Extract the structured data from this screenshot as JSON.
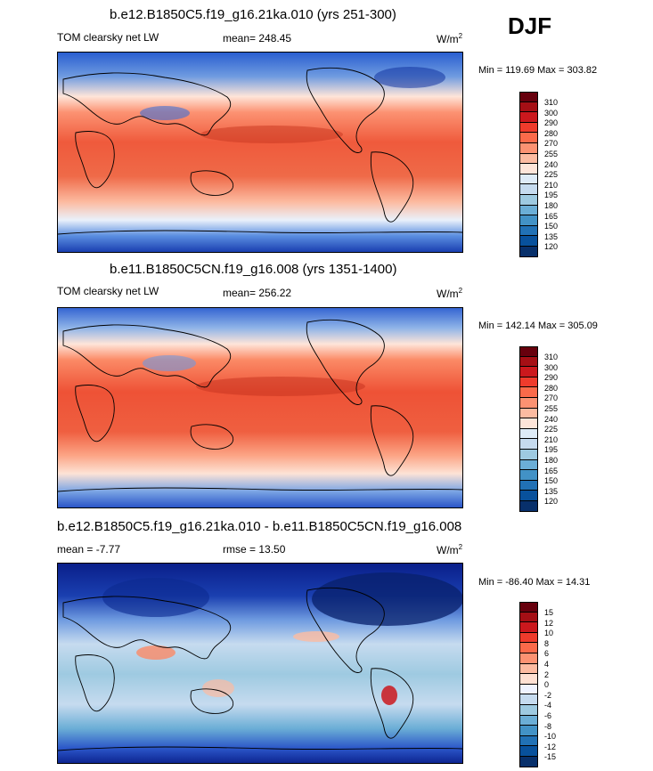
{
  "season": "DJF",
  "panels": [
    {
      "title": "b.e12.B1850C5.f19_g16.21ka.010 (yrs 251-300)",
      "variable": "TOM clearsky net LW",
      "mean_label": "mean= 248.45",
      "units_base": "W/m",
      "units_exp": "2",
      "minmax": "Min = 119.69 Max = 303.82",
      "kind": "absolute",
      "colorbar_labels": [
        "310",
        "300",
        "290",
        "280",
        "270",
        "255",
        "240",
        "225",
        "210",
        "195",
        "180",
        "165",
        "150",
        "135",
        "120"
      ]
    },
    {
      "title": "b.e11.B1850C5CN.f19_g16.008 (yrs 1351-1400)",
      "variable": "TOM clearsky net LW",
      "mean_label": "mean= 256.22",
      "units_base": "W/m",
      "units_exp": "2",
      "minmax": "Min = 142.14 Max = 305.09",
      "kind": "absolute",
      "colorbar_labels": [
        "310",
        "300",
        "290",
        "280",
        "270",
        "255",
        "240",
        "225",
        "210",
        "195",
        "180",
        "165",
        "150",
        "135",
        "120"
      ]
    },
    {
      "title": "b.e12.B1850C5.f19_g16.21ka.010 - b.e11.B1850C5CN.f19_g16.008",
      "mean_label": "mean =  -7.77",
      "rmse_label": "rmse =  13.50",
      "units_base": "W/m",
      "units_exp": "2",
      "minmax": "Min = -86.40 Max =  14.31",
      "kind": "difference",
      "colorbar_labels": [
        "15",
        "12",
        "10",
        "8",
        "6",
        "4",
        "2",
        "0",
        "-2",
        "-4",
        "-6",
        "-8",
        "-10",
        "-12",
        "-15"
      ]
    }
  ],
  "colors": {
    "abs_palette": [
      "#67000d",
      "#a50f15",
      "#cb181d",
      "#ef3b2c",
      "#fb6a4a",
      "#fc9272",
      "#fcbba1",
      "#fee5d9",
      "#deebf7",
      "#c6dbef",
      "#9ecae1",
      "#6baed6",
      "#4292c6",
      "#2171b5",
      "#08519c",
      "#08306b"
    ],
    "diff_palette": [
      "#67000d",
      "#a50f15",
      "#cb181d",
      "#ef3b2c",
      "#fb6a4a",
      "#fc9272",
      "#fcbba1",
      "#fee0d2",
      "#eff3ff",
      "#c6dbef",
      "#9ecae1",
      "#6baed6",
      "#4292c6",
      "#2171b5",
      "#08519c",
      "#08306b"
    ]
  },
  "chart_data": [
    {
      "type": "heatmap",
      "title": "b.e12.B1850C5.f19_g16.21ka.010 (yrs 251-300)",
      "variable": "TOM clearsky net LW",
      "units": "W/m2",
      "season": "DJF",
      "mean": 248.45,
      "min": 119.69,
      "max": 303.82,
      "contour_levels": [
        120,
        135,
        150,
        165,
        180,
        195,
        210,
        225,
        240,
        255,
        270,
        280,
        290,
        300,
        310
      ]
    },
    {
      "type": "heatmap",
      "title": "b.e11.B1850C5CN.f19_g16.008 (yrs 1351-1400)",
      "variable": "TOM clearsky net LW",
      "units": "W/m2",
      "season": "DJF",
      "mean": 256.22,
      "min": 142.14,
      "max": 305.09,
      "contour_levels": [
        120,
        135,
        150,
        165,
        180,
        195,
        210,
        225,
        240,
        255,
        270,
        280,
        290,
        300,
        310
      ]
    },
    {
      "type": "heatmap",
      "title": "b.e12.B1850C5.f19_g16.21ka.010 - b.e11.B1850C5CN.f19_g16.008",
      "units": "W/m2",
      "season": "DJF",
      "mean": -7.77,
      "rmse": 13.5,
      "min": -86.4,
      "max": 14.31,
      "contour_levels": [
        -15,
        -12,
        -10,
        -8,
        -6,
        -4,
        -2,
        0,
        2,
        4,
        6,
        8,
        10,
        12,
        15
      ]
    }
  ]
}
